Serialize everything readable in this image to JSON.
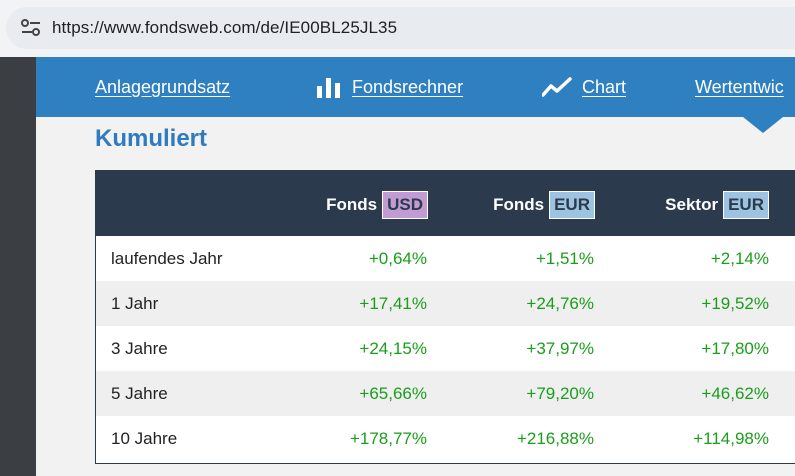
{
  "browser": {
    "url": "https://www.fondsweb.com/de/IE00BL25JL35"
  },
  "nav": {
    "items": [
      {
        "label": "Anlagegrundsatz",
        "icon": "none"
      },
      {
        "label": "Fondsrechner",
        "icon": "bar-chart-icon"
      },
      {
        "label": "Chart",
        "icon": "line-chart-icon"
      },
      {
        "label": "Wertentwic",
        "icon": "none"
      }
    ]
  },
  "section": {
    "title": "Kumuliert"
  },
  "table": {
    "headers": [
      {
        "label": "Fonds",
        "tag": "USD",
        "tag_color": "#c39bd3"
      },
      {
        "label": "Fonds",
        "tag": "EUR",
        "tag_color": "#9ec3e0"
      },
      {
        "label": "Sektor",
        "tag": "EUR",
        "tag_color": "#9ec3e0"
      }
    ],
    "rows": [
      {
        "label": "laufendes Jahr",
        "values": [
          "+0,64%",
          "+1,51%",
          "+2,14%"
        ]
      },
      {
        "label": "1 Jahr",
        "values": [
          "+17,41%",
          "+24,76%",
          "+19,52%"
        ]
      },
      {
        "label": "3 Jahre",
        "values": [
          "+24,15%",
          "+37,97%",
          "+17,80%"
        ]
      },
      {
        "label": "5 Jahre",
        "values": [
          "+65,66%",
          "+79,20%",
          "+46,62%"
        ]
      },
      {
        "label": "10 Jahre",
        "values": [
          "+178,77%",
          "+216,88%",
          "+114,98%"
        ]
      }
    ]
  },
  "colors": {
    "accent": "#2f80c0",
    "positive": "#1a9e1a",
    "header_bg": "#2b3a4d"
  }
}
